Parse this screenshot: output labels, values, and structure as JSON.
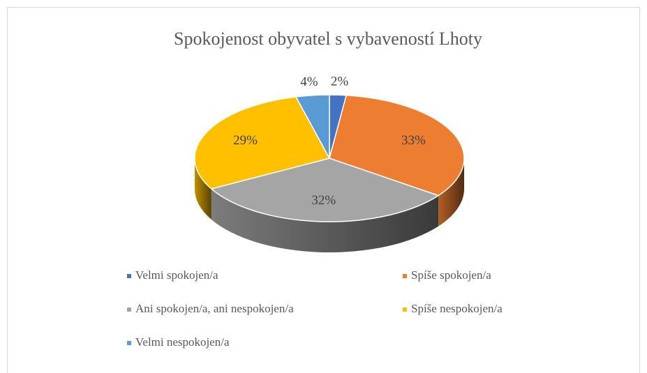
{
  "chart_data": {
    "type": "pie3d",
    "title": "Spokojenost obyvatel s vybaveností Lhoty",
    "categories": [
      "Velmi spokojen/a",
      "Spíše spokojen/a",
      "Ani spokojen/a, ani nespokojen/a",
      "Spíše nespokojen/a",
      "Velmi nespokojen/a"
    ],
    "values": [
      2,
      33,
      32,
      29,
      4
    ],
    "value_labels": [
      "2%",
      "33%",
      "32%",
      "29%",
      "4%"
    ],
    "colors": [
      "#4472c4",
      "#ed7d31",
      "#a5a5a5",
      "#ffc000",
      "#5b9bd5"
    ],
    "legend": "bottom"
  }
}
